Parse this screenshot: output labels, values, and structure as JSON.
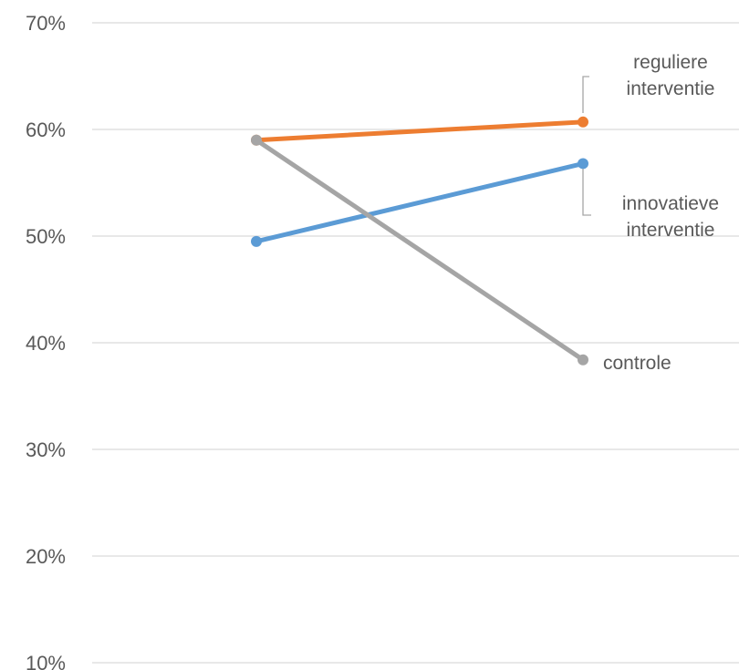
{
  "chart_data": {
    "type": "line",
    "x": [
      "",
      ""
    ],
    "ylim": [
      0.1,
      0.7
    ],
    "yticks": [
      "10%",
      "20%",
      "30%",
      "40%",
      "50%",
      "60%",
      "70%"
    ],
    "grid": true,
    "legend": "none; series labelled at line ends",
    "series": [
      {
        "key": "orange",
        "name": "reguliere interventie",
        "label_lines": [
          "reguliere",
          "interventie"
        ],
        "color": "#ED7D31",
        "values": [
          0.59,
          0.607
        ]
      },
      {
        "key": "blue",
        "name": "innovatieve interventie",
        "label_lines": [
          "innovatieve",
          "interventie"
        ],
        "color": "#5B9BD5",
        "values": [
          0.495,
          0.568
        ]
      },
      {
        "key": "gray",
        "name": "controle",
        "label_lines": [
          "controle"
        ],
        "color": "#A5A5A5",
        "values": [
          0.59,
          0.384
        ]
      }
    ]
  }
}
